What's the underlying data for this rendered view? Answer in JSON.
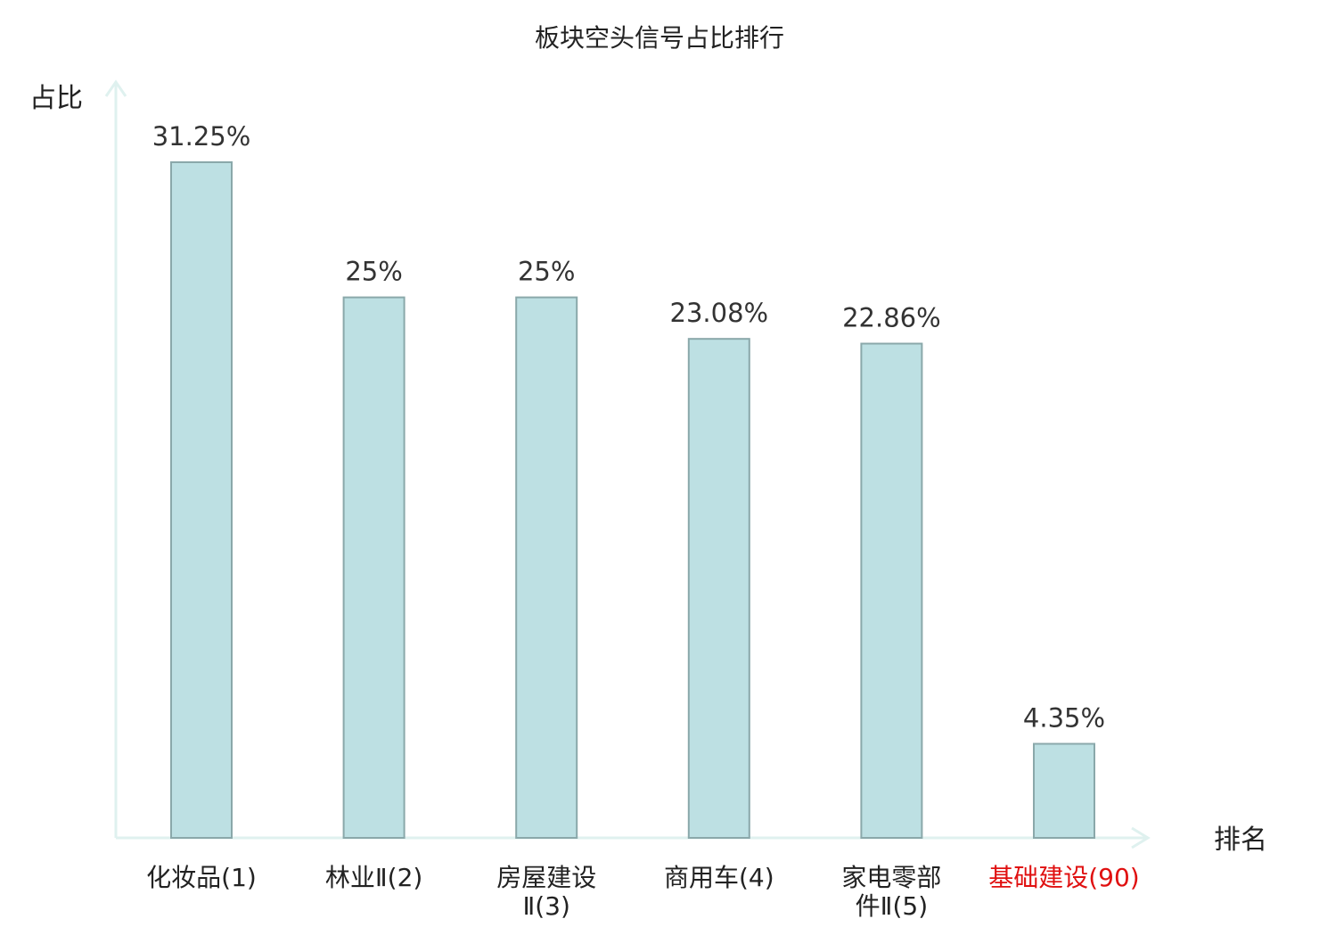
{
  "chart_data": {
    "type": "bar",
    "title": "板块空头信号占比排行",
    "ylabel": "占比",
    "xlabel": "排名",
    "categories": [
      [
        "化妆品(1)"
      ],
      [
        "林业Ⅱ(2)"
      ],
      [
        "房屋建设",
        "Ⅱ(3)"
      ],
      [
        "商用车(4)"
      ],
      [
        "家电零部",
        "件Ⅱ(5)"
      ],
      [
        "基础建设(90)"
      ]
    ],
    "values": [
      31.25,
      25,
      25,
      23.08,
      22.86,
      4.35
    ],
    "value_labels": [
      "31.25%",
      "25%",
      "25%",
      "23.08%",
      "22.86%",
      "4.35%"
    ],
    "highlight_index": 5,
    "ylim": [
      0,
      35
    ],
    "grid": false,
    "colors": {
      "bar_fill": "#bde0e3",
      "bar_stroke": "#8aa8aa",
      "axis": "#dff1ef",
      "text": "#222222",
      "value_text": "#333333",
      "highlight": "#e01010"
    }
  }
}
